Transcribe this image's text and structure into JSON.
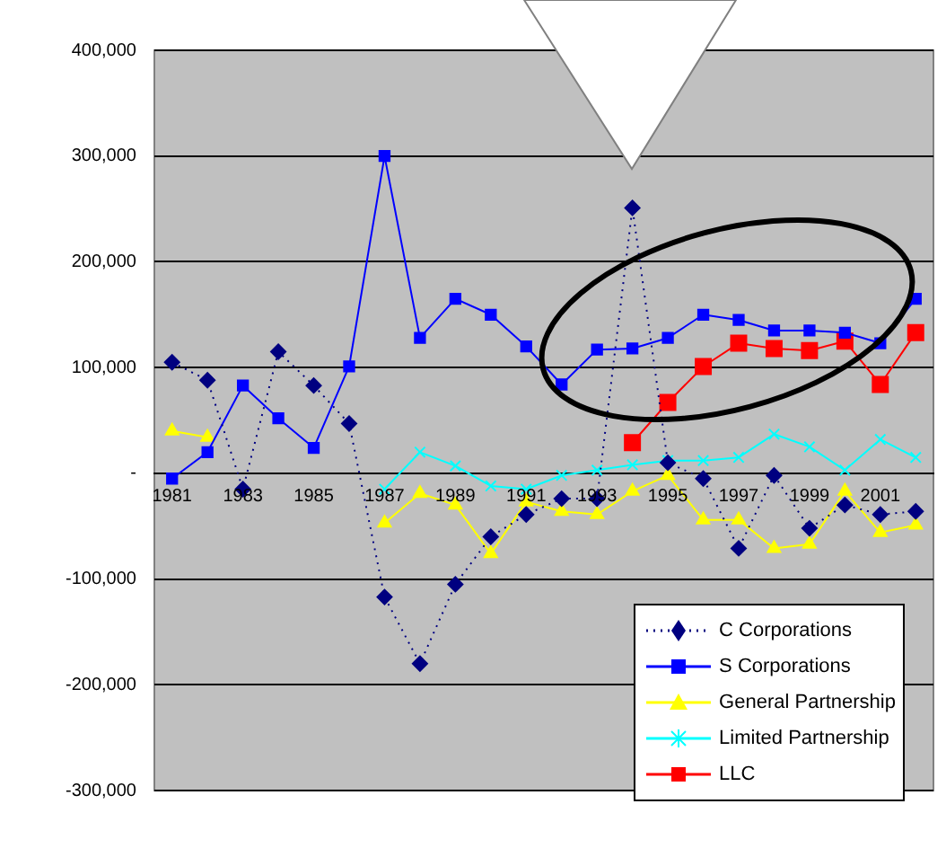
{
  "chart_data": {
    "type": "line",
    "categories": [
      "1981",
      null,
      "1983",
      null,
      "1985",
      null,
      "1987",
      null,
      "1989",
      null,
      "1991",
      null,
      "1993",
      null,
      "1995",
      null,
      "1997",
      null,
      "1999",
      null,
      "2001",
      null
    ],
    "series": [
      {
        "name": "C Corporations",
        "color": "#000080",
        "marker": "diamond",
        "line_style": "dotted",
        "values": [
          105000,
          88000,
          -15000,
          115000,
          83000,
          47000,
          -117000,
          -180000,
          -105000,
          -60000,
          -39000,
          -24000,
          -24000,
          251000,
          10000,
          -5000,
          -71000,
          -2000,
          -52000,
          -30000,
          -39000,
          -36000
        ]
      },
      {
        "name": "S Corporations",
        "color": "#0000ff",
        "marker": "square",
        "values": [
          -5000,
          20000,
          83000,
          52000,
          24000,
          101000,
          300000,
          128000,
          165000,
          150000,
          120000,
          84000,
          117000,
          118000,
          128000,
          150000,
          145000,
          135000,
          135000,
          133000,
          123000,
          165000
        ]
      },
      {
        "name": "General Partnership",
        "color": "#ffff00",
        "marker": "triangle",
        "values": [
          40000,
          34000,
          null,
          null,
          null,
          null,
          -47000,
          -19000,
          -30000,
          -76000,
          -27000,
          -36000,
          -39000,
          -17000,
          -2000,
          -44000,
          -44000,
          -71000,
          -67000,
          -17000,
          -56000,
          -49000
        ]
      },
      {
        "name": "Limited Partnership",
        "color": "#00ffff",
        "marker": "cross",
        "values": [
          null,
          null,
          null,
          null,
          null,
          null,
          -15000,
          20000,
          7000,
          -12000,
          -15000,
          -2000,
          3000,
          8000,
          12000,
          12000,
          15000,
          37000,
          25000,
          3000,
          32000,
          15000
        ]
      },
      {
        "name": "LLC",
        "color": "#ff0000",
        "marker": "square",
        "values": [
          null,
          null,
          null,
          null,
          null,
          null,
          null,
          null,
          null,
          null,
          null,
          null,
          null,
          29000,
          67000,
          101000,
          123000,
          118000,
          116000,
          125000,
          84000,
          133000
        ]
      }
    ],
    "ylim": [
      -300000,
      400000
    ],
    "yticks": [
      {
        "value": 400000,
        "label": "400,000"
      },
      {
        "value": 300000,
        "label": "300,000"
      },
      {
        "value": 200000,
        "label": "200,000"
      },
      {
        "value": 100000,
        "label": "100,000"
      },
      {
        "value": 0,
        "label": "-"
      },
      {
        "value": -100000,
        "label": "-100,000"
      },
      {
        "value": -200000,
        "label": "-200,000"
      },
      {
        "value": -300000,
        "label": "-300,000"
      }
    ],
    "grid": "y",
    "legend": "bottom right"
  }
}
